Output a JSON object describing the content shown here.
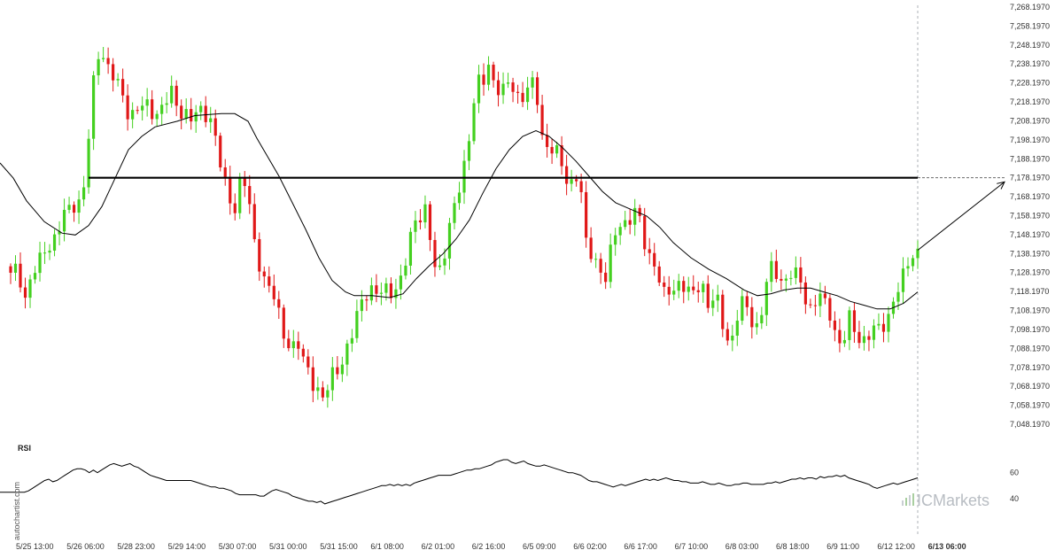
{
  "watermark": "autochartist.com",
  "brand": {
    "name": "ICMarkets",
    "color": "#b8bdc3"
  },
  "chart_data": [
    {
      "type": "candlestick",
      "title": "",
      "y_ticks": [
        "7,048.1970",
        "7,058.1970",
        "7,068.1970",
        "7,078.1970",
        "7,088.1970",
        "7,098.1970",
        "7,108.1970",
        "7,118.1970",
        "7,128.1970",
        "7,138.1970",
        "7,148.1970",
        "7,158.1970",
        "7,168.1970",
        "7,178.1970",
        "7,188.1970",
        "7,198.1970",
        "7,208.1970",
        "7,218.1970",
        "7,228.1970",
        "7,238.1970",
        "7,248.1970",
        "7,258.1970",
        "7,268.1970"
      ],
      "ylim": [
        7048.197,
        7268.197
      ],
      "x_ticks": [
        "5/25 13:00",
        "5/26 06:00",
        "5/28 23:00",
        "5/29 14:00",
        "5/30 07:00",
        "5/31 00:00",
        "5/31 15:00",
        "6/1 08:00",
        "6/2 01:00",
        "6/2 16:00",
        "6/5 09:00",
        "6/6 02:00",
        "6/6 17:00",
        "6/7 10:00",
        "6/8 03:00",
        "6/8 18:00",
        "6/9 11:00",
        "6/12 12:00",
        "6/13 06:00"
      ],
      "highlighted_x_tick": "6/13 06:00",
      "resistance_level": 7178.197,
      "projection_target": 7178.197,
      "colors": {
        "up": "#44d020",
        "down": "#e01818",
        "moving_average": "#000000",
        "resistance": "#000000"
      },
      "candle_count": 187,
      "price_path": [
        [
          0,
          7140
        ],
        [
          6,
          7132
        ],
        [
          12,
          7126
        ],
        [
          18,
          7130
        ],
        [
          24,
          7124
        ],
        [
          30,
          7112
        ],
        [
          36,
          7130
        ],
        [
          42,
          7128
        ],
        [
          48,
          7140
        ],
        [
          54,
          7142
        ],
        [
          60,
          7145
        ],
        [
          66,
          7150
        ],
        [
          72,
          7158
        ],
        [
          78,
          7162
        ],
        [
          84,
          7165
        ],
        [
          90,
          7166
        ],
        [
          96,
          7175
        ],
        [
          102,
          7210
        ],
        [
          108,
          7240
        ],
        [
          114,
          7248
        ],
        [
          120,
          7238
        ],
        [
          126,
          7232
        ],
        [
          132,
          7228
        ],
        [
          138,
          7222
        ],
        [
          144,
          7214
        ],
        [
          150,
          7212
        ],
        [
          156,
          7214
        ],
        [
          162,
          7216
        ],
        [
          168,
          7216
        ],
        [
          174,
          7212
        ],
        [
          180,
          7214
        ],
        [
          186,
          7215
        ],
        [
          192,
          7225
        ],
        [
          198,
          7218
        ],
        [
          204,
          7214
        ],
        [
          210,
          7212
        ],
        [
          216,
          7208
        ],
        [
          222,
          7212
        ],
        [
          228,
          7214
        ],
        [
          234,
          7212
        ],
        [
          240,
          7208
        ],
        [
          246,
          7190
        ],
        [
          252,
          7178
        ],
        [
          258,
          7170
        ],
        [
          264,
          7160
        ],
        [
          270,
          7175
        ],
        [
          276,
          7175
        ],
        [
          282,
          7162
        ],
        [
          288,
          7142
        ],
        [
          294,
          7132
        ],
        [
          300,
          7122
        ],
        [
          306,
          7118
        ],
        [
          312,
          7112
        ],
        [
          318,
          7100
        ],
        [
          324,
          7092
        ],
        [
          330,
          7088
        ],
        [
          336,
          7090
        ],
        [
          342,
          7082
        ],
        [
          348,
          7078
        ],
        [
          354,
          7070
        ],
        [
          360,
          7064
        ],
        [
          366,
          7060
        ],
        [
          372,
          7070
        ],
        [
          378,
          7080
        ],
        [
          384,
          7078
        ],
        [
          390,
          7085
        ],
        [
          396,
          7092
        ],
        [
          402,
          7104
        ],
        [
          408,
          7115
        ],
        [
          414,
          7118
        ],
        [
          420,
          7118
        ],
        [
          426,
          7116
        ],
        [
          432,
          7118
        ],
        [
          438,
          7122
        ],
        [
          444,
          7118
        ],
        [
          450,
          7120
        ],
        [
          456,
          7128
        ],
        [
          462,
          7144
        ],
        [
          468,
          7158
        ],
        [
          474,
          7158
        ],
        [
          480,
          7160
        ],
        [
          486,
          7144
        ],
        [
          492,
          7128
        ],
        [
          498,
          7132
        ],
        [
          504,
          7145
        ],
        [
          510,
          7158
        ],
        [
          516,
          7166
        ],
        [
          522,
          7180
        ],
        [
          528,
          7195
        ],
        [
          534,
          7218
        ],
        [
          540,
          7228
        ],
        [
          546,
          7228
        ],
        [
          552,
          7238
        ],
        [
          558,
          7228
        ],
        [
          564,
          7226
        ],
        [
          570,
          7224
        ],
        [
          576,
          7228
        ],
        [
          582,
          7222
        ],
        [
          588,
          7220
        ],
        [
          594,
          7226
        ],
        [
          600,
          7228
        ],
        [
          606,
          7220
        ],
        [
          612,
          7200
        ],
        [
          618,
          7195
        ],
        [
          624,
          7195
        ],
        [
          630,
          7190
        ],
        [
          636,
          7180
        ],
        [
          642,
          7174
        ],
        [
          648,
          7178
        ],
        [
          654,
          7184
        ],
        [
          660,
          7144
        ],
        [
          666,
          7138
        ],
        [
          672,
          7135
        ],
        [
          678,
          7130
        ],
        [
          684,
          7126
        ],
        [
          690,
          7140
        ],
        [
          696,
          7150
        ],
        [
          702,
          7155
        ],
        [
          708,
          7155
        ],
        [
          714,
          7160
        ],
        [
          720,
          7160
        ],
        [
          726,
          7145
        ],
        [
          732,
          7138
        ],
        [
          738,
          7135
        ],
        [
          744,
          7125
        ],
        [
          750,
          7115
        ],
        [
          756,
          7118
        ],
        [
          762,
          7120
        ],
        [
          768,
          7125
        ],
        [
          774,
          7120
        ],
        [
          780,
          7115
        ],
        [
          786,
          7118
        ],
        [
          792,
          7125
        ],
        [
          798,
          7112
        ],
        [
          804,
          7114
        ],
        [
          810,
          7112
        ],
        [
          816,
          7100
        ],
        [
          822,
          7092
        ],
        [
          828,
          7096
        ],
        [
          834,
          7110
        ],
        [
          840,
          7112
        ],
        [
          846,
          7106
        ],
        [
          852,
          7098
        ],
        [
          858,
          7104
        ],
        [
          864,
          7120
        ],
        [
          870,
          7130
        ],
        [
          876,
          7128
        ],
        [
          882,
          7124
        ],
        [
          888,
          7126
        ],
        [
          894,
          7128
        ],
        [
          900,
          7125
        ],
        [
          906,
          7122
        ],
        [
          912,
          7108
        ],
        [
          918,
          7112
        ],
        [
          924,
          7116
        ],
        [
          930,
          7112
        ],
        [
          936,
          7108
        ],
        [
          942,
          7098
        ],
        [
          948,
          7092
        ],
        [
          954,
          7094
        ],
        [
          960,
          7105
        ],
        [
          966,
          7096
        ],
        [
          972,
          7092
        ],
        [
          978,
          7095
        ],
        [
          984,
          7096
        ],
        [
          990,
          7098
        ],
        [
          996,
          7100
        ],
        [
          1002,
          7104
        ],
        [
          1008,
          7114
        ],
        [
          1014,
          7118
        ],
        [
          1020,
          7126
        ],
        [
          1026,
          7136
        ],
        [
          1032,
          7138
        ],
        [
          1036,
          7140
        ]
      ],
      "moving_average_path": [
        [
          0,
          7186
        ],
        [
          15,
          7178
        ],
        [
          30,
          7166
        ],
        [
          50,
          7155
        ],
        [
          70,
          7149
        ],
        [
          85,
          7148
        ],
        [
          100,
          7153
        ],
        [
          115,
          7163
        ],
        [
          130,
          7178
        ],
        [
          145,
          7193
        ],
        [
          160,
          7200
        ],
        [
          175,
          7205
        ],
        [
          200,
          7208
        ],
        [
          220,
          7211
        ],
        [
          250,
          7212
        ],
        [
          265,
          7212
        ],
        [
          280,
          7208
        ],
        [
          290,
          7199
        ],
        [
          300,
          7191
        ],
        [
          315,
          7179
        ],
        [
          330,
          7165
        ],
        [
          345,
          7151
        ],
        [
          360,
          7136
        ],
        [
          375,
          7124
        ],
        [
          390,
          7118
        ],
        [
          400,
          7116
        ],
        [
          420,
          7116
        ],
        [
          440,
          7115
        ],
        [
          455,
          7117
        ],
        [
          470,
          7125
        ],
        [
          485,
          7132
        ],
        [
          500,
          7138
        ],
        [
          515,
          7146
        ],
        [
          530,
          7156
        ],
        [
          545,
          7170
        ],
        [
          560,
          7183
        ],
        [
          575,
          7193
        ],
        [
          590,
          7200
        ],
        [
          605,
          7203
        ],
        [
          620,
          7200
        ],
        [
          635,
          7194
        ],
        [
          650,
          7187
        ],
        [
          665,
          7179
        ],
        [
          680,
          7171
        ],
        [
          695,
          7165
        ],
        [
          710,
          7162
        ],
        [
          730,
          7158
        ],
        [
          745,
          7152
        ],
        [
          760,
          7144
        ],
        [
          780,
          7136
        ],
        [
          800,
          7130
        ],
        [
          820,
          7125
        ],
        [
          840,
          7119
        ],
        [
          855,
          7116
        ],
        [
          870,
          7117
        ],
        [
          885,
          7119
        ],
        [
          900,
          7120
        ],
        [
          915,
          7120
        ],
        [
          930,
          7118
        ],
        [
          945,
          7116
        ],
        [
          960,
          7113
        ],
        [
          975,
          7111
        ],
        [
          990,
          7109
        ],
        [
          1005,
          7109
        ],
        [
          1020,
          7112
        ],
        [
          1036,
          7118
        ]
      ],
      "projection_path": [
        [
          1036,
          7140
        ],
        [
          1134,
          7176
        ]
      ]
    },
    {
      "type": "line",
      "title": "RSI",
      "y_ticks": [
        "40",
        "60"
      ],
      "ylim": [
        25,
        85
      ],
      "values": [
        45,
        45,
        45,
        45,
        45,
        45,
        45,
        46,
        48,
        50,
        52,
        54,
        55,
        53,
        54,
        56,
        58,
        60,
        62,
        63,
        63,
        62,
        60,
        62,
        60,
        62,
        64,
        66,
        67,
        66,
        65,
        66,
        67,
        65,
        64,
        62,
        60,
        58,
        57,
        56,
        55,
        54,
        54,
        54,
        54,
        54,
        54,
        54,
        53,
        52,
        51,
        50,
        49,
        49,
        48,
        48,
        47,
        46,
        44,
        43,
        43,
        43,
        43,
        43,
        42,
        42,
        44,
        46,
        47,
        46,
        45,
        44,
        42,
        41,
        40,
        39,
        38,
        38,
        37,
        38,
        36,
        37,
        38,
        39,
        40,
        41,
        42,
        43,
        44,
        45,
        46,
        47,
        48,
        49,
        50,
        50,
        51,
        50,
        51,
        50,
        51,
        50,
        52,
        53,
        54,
        55,
        56,
        57,
        58,
        58,
        58,
        58,
        59,
        60,
        61,
        62,
        62,
        63,
        63,
        64,
        65,
        66,
        68,
        69,
        70,
        70,
        68,
        67,
        68,
        69,
        67,
        66,
        65,
        65,
        66,
        65,
        64,
        63,
        62,
        61,
        60,
        60,
        59,
        58,
        56,
        54,
        53,
        53,
        52,
        51,
        50,
        49,
        50,
        51,
        50,
        51,
        52,
        53,
        54,
        55,
        54,
        55,
        54,
        55,
        56,
        55,
        54,
        54,
        53,
        53,
        52,
        52,
        52,
        53,
        52,
        51,
        51,
        52,
        51,
        50,
        50,
        51,
        51,
        52,
        52,
        51,
        51,
        51,
        51,
        52,
        52,
        53,
        52,
        53,
        54,
        55,
        55,
        56,
        55,
        56,
        56,
        55,
        57,
        56,
        57,
        57,
        58,
        57,
        58,
        56,
        55,
        54,
        53,
        52,
        51,
        49,
        48,
        49,
        50,
        51,
        52,
        51,
        52,
        53,
        54,
        55,
        56
      ]
    }
  ]
}
